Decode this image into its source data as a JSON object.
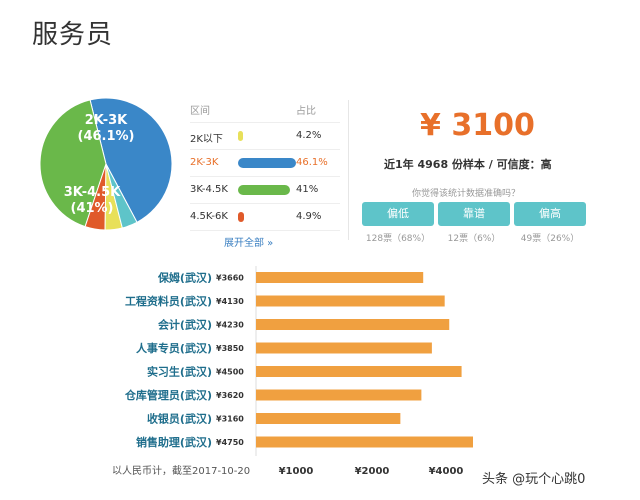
{
  "page_title": "服务员",
  "distribution": {
    "header_range": "区间",
    "header_pct": "占比",
    "rows": [
      {
        "label": "2K以下",
        "pct_text": "4.2%",
        "pct": 4.2,
        "color": "#e8e05a",
        "highlight": false
      },
      {
        "label": "2K-3K",
        "pct_text": "46.1%",
        "pct": 46.1,
        "color": "#3a87c8",
        "highlight": true
      },
      {
        "label": "3K-4.5K",
        "pct_text": "41%",
        "pct": 41,
        "color": "#6ab84a",
        "highlight": false
      },
      {
        "label": "4.5K-6K",
        "pct_text": "4.9%",
        "pct": 4.9,
        "color": "#e05a2a",
        "highlight": false
      }
    ],
    "expand_link": "展开全部 »"
  },
  "pie": {
    "labels": [
      {
        "line1": "2K-3K",
        "line2": "(46.1%)"
      },
      {
        "line1": "3K-4.5K",
        "line2": "(41%)"
      }
    ],
    "extra_slice": {
      "color": "#5ec4c9",
      "pct": 3.8
    }
  },
  "salary": {
    "value": "¥ 3100",
    "sample_text": "近1年 4968 份样本 / 可信度：高",
    "question": "你觉得该统计数据准确吗？",
    "votes": [
      {
        "label": "偏低",
        "count": "128票（68%）"
      },
      {
        "label": "靠谱",
        "count": "12票（6%）"
      },
      {
        "label": "偏高",
        "count": "49票（26%）"
      }
    ]
  },
  "chart_data": {
    "type": "bar",
    "orientation": "horizontal",
    "categories": [
      "保姆(武汉)",
      "工程资料员(武汉)",
      "会计(武汉)",
      "人事专员(武汉)",
      "实习生(武汉)",
      "仓库管理员(武汉)",
      "收银员(武汉)",
      "销售助理(武汉)"
    ],
    "value_labels": [
      "¥3660",
      "¥4130",
      "¥4230",
      "¥3850",
      "¥4500",
      "¥3620",
      "¥3160",
      "¥4750"
    ],
    "values": [
      3660,
      4130,
      4230,
      3850,
      4500,
      3620,
      3160,
      4750
    ],
    "x_ticks": [
      1000,
      2000,
      4000
    ],
    "x_tick_labels": [
      "¥1000",
      "¥2000",
      "¥4000"
    ],
    "color": "#f0a040",
    "footnote": "以人民币计，截至2017-10-20"
  },
  "watermark": "头条 @玩个心跳0"
}
